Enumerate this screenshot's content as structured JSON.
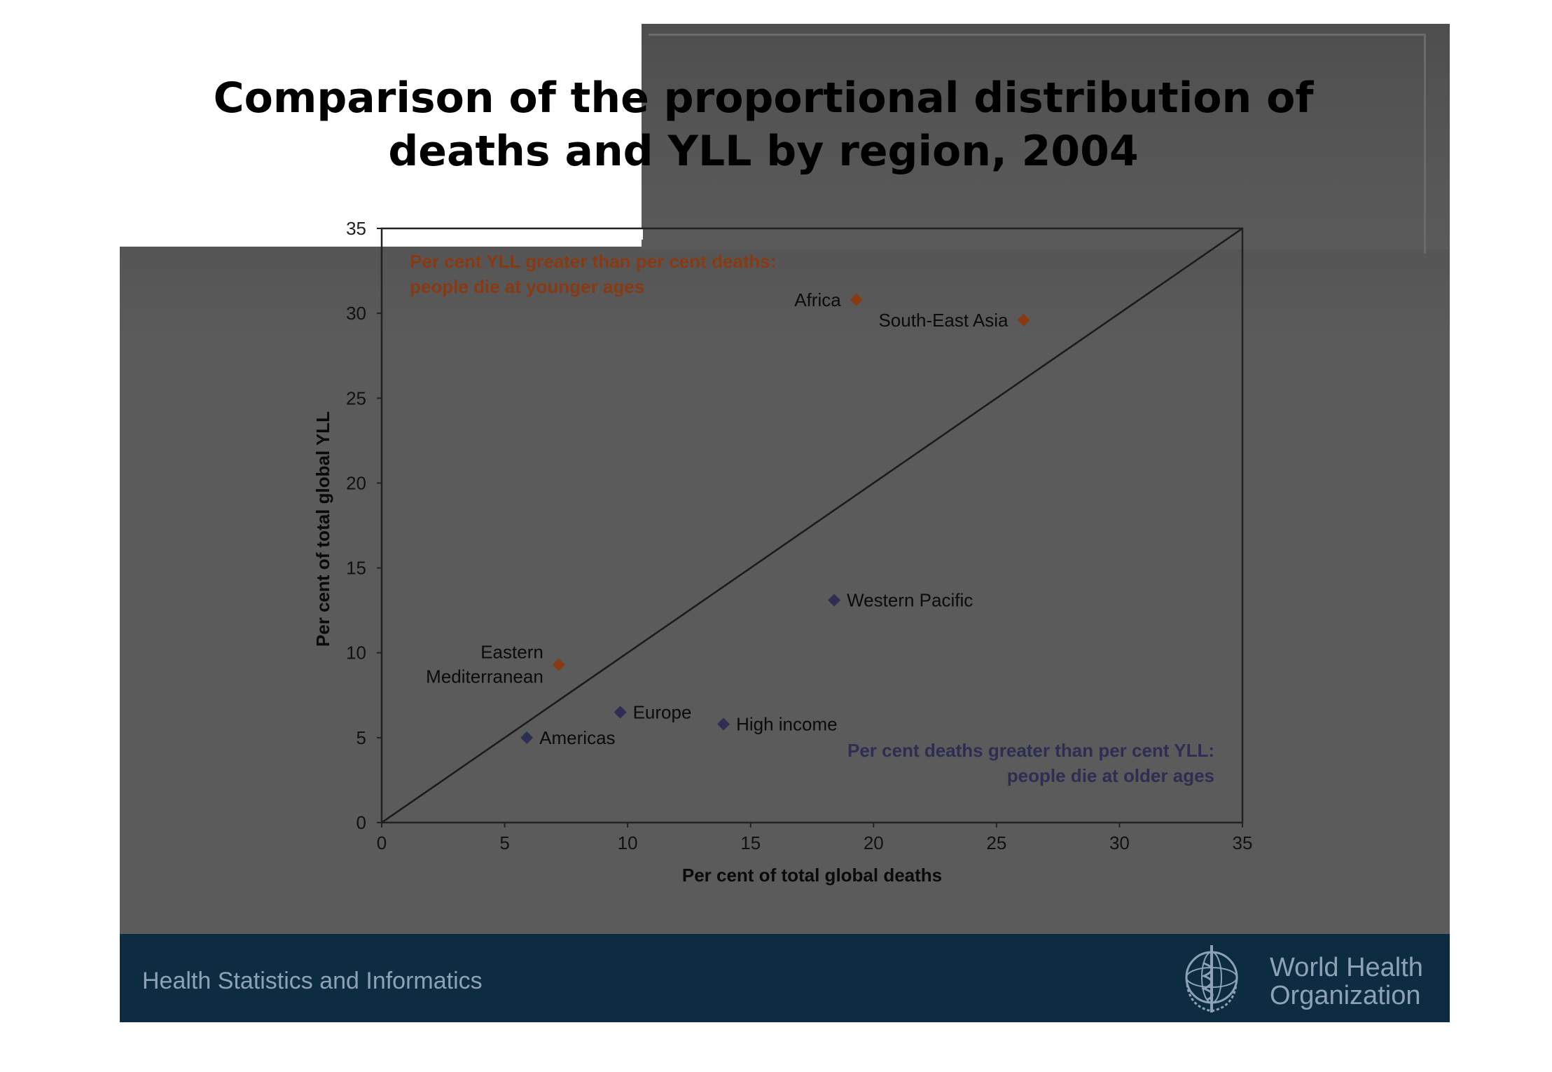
{
  "page": {
    "title_line1": "Comparison of the proportional distribution of",
    "title_line2": "deaths and YLL by region, 2004"
  },
  "footer": {
    "left_text": "Health Statistics and Informatics",
    "org_line1": "World Health",
    "org_line2": "Organization",
    "logo_icon": "who-emblem-icon"
  },
  "colors": {
    "background": "#5b5b5b",
    "footer": "#0d2c42",
    "series_younger": "#8a3a12",
    "series_older": "#2d2e52"
  },
  "chart_data": {
    "type": "scatter",
    "title": "",
    "xlabel": "Per cent of total global deaths",
    "ylabel": "Per cent of total global YLL",
    "xlim": [
      0,
      35
    ],
    "ylim": [
      0,
      35
    ],
    "x_ticks": [
      0,
      5,
      10,
      15,
      20,
      25,
      30,
      35
    ],
    "y_ticks": [
      0,
      5,
      10,
      15,
      20,
      25,
      30,
      35
    ],
    "grid": false,
    "legend": "none",
    "reference_line": {
      "from": [
        0,
        0
      ],
      "to": [
        35,
        35
      ]
    },
    "points": [
      {
        "label": "Africa",
        "x": 19.3,
        "y": 30.8,
        "group": "younger",
        "label_side": "left"
      },
      {
        "label": "South-East Asia",
        "x": 26.1,
        "y": 29.6,
        "group": "younger",
        "label_side": "left"
      },
      {
        "label": "Eastern Mediterranean",
        "x": 7.2,
        "y": 9.3,
        "group": "younger",
        "label_side": "left"
      },
      {
        "label": "Western Pacific",
        "x": 18.4,
        "y": 13.1,
        "group": "older",
        "label_side": "right"
      },
      {
        "label": "Europe",
        "x": 9.7,
        "y": 6.5,
        "group": "older",
        "label_side": "right"
      },
      {
        "label": "High income",
        "x": 13.9,
        "y": 5.8,
        "group": "older",
        "label_side": "right"
      },
      {
        "label": "Americas",
        "x": 5.9,
        "y": 5.0,
        "group": "older",
        "label_side": "right"
      }
    ],
    "annotations": [
      {
        "id": "younger",
        "lines": [
          "Per cent YLL greater than per cent deaths:",
          "people die at younger ages"
        ],
        "placement": "top-left"
      },
      {
        "id": "older",
        "lines": [
          "Per cent deaths greater than per cent YLL:",
          "people die at older ages"
        ],
        "placement": "bottom-right"
      }
    ]
  }
}
